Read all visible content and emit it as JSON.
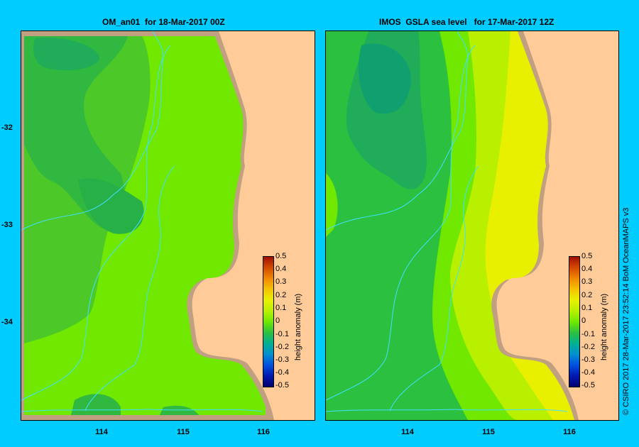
{
  "panels": [
    {
      "title": "OM_an01  for 18-Mar-2017 00Z"
    },
    {
      "title": "IMOS  GSLA sea level   for 17-Mar-2017 12Z"
    }
  ],
  "x_ticks": [
    "114",
    "115",
    "116"
  ],
  "y_ticks": [
    "-32",
    "-33",
    "-34"
  ],
  "colorbar": {
    "label": "height anomaly (m)",
    "ticks": [
      "0.5",
      "0.4",
      "0.3",
      "0.2",
      "0.1",
      "0",
      "-0.1",
      "-0.2",
      "-0.3",
      "-0.4",
      "-0.5"
    ],
    "colors": [
      "#a01000",
      "#d44a00",
      "#f08800",
      "#f4c400",
      "#e8f000",
      "#b8f000",
      "#70e800",
      "#2cc040",
      "#00b090",
      "#0090d0",
      "#0050e0",
      "#0018b0",
      "#000070"
    ]
  },
  "colors": {
    "background": "#00ccff",
    "land": "#ffcc99",
    "shelf": "#c0a080",
    "isobath": "#40e0ff"
  },
  "credit": "© CSIRO 2017   28-Mar-2017 23:52:14 BoM OceanMAPS v3"
}
